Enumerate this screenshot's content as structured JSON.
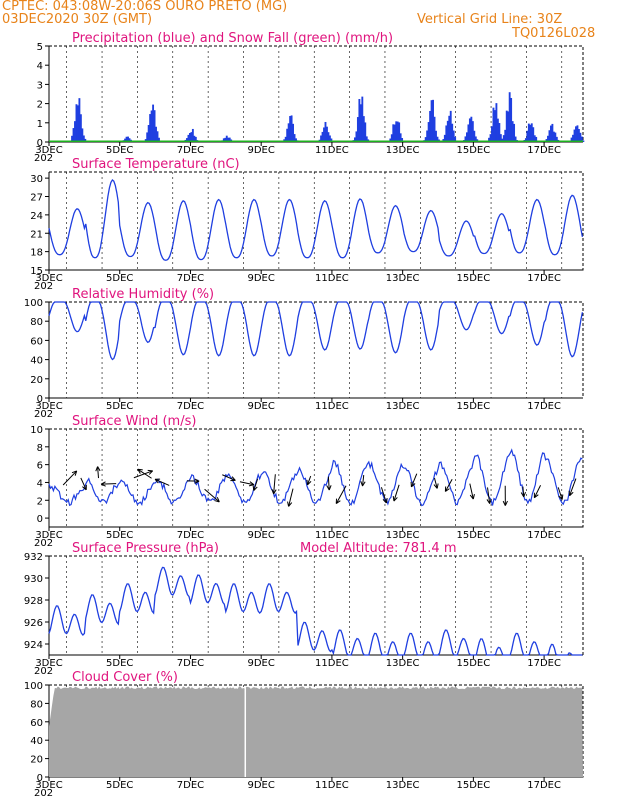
{
  "header": {
    "line1_left": "CPTEC:   043:08W-20:06S  OURO PRETO (MG)",
    "line2_left": "03DEC2020 30Z (GMT)",
    "line2_right": "Vertical Grid Line: 30Z",
    "line3_right": "TQ0126L028"
  },
  "colors": {
    "header": "#e8831a",
    "title": "#e0147e",
    "series": "#1f3fe0",
    "snow": "#1db21d",
    "cloud": "#a6a6a6"
  },
  "x_labels": [
    "3DEC",
    "5DEC",
    "7DEC",
    "9DEC",
    "11DEC",
    "13DEC",
    "15DEC",
    "17DEC"
  ],
  "x_sublabel": "202",
  "chart_data": [
    {
      "type": "bar",
      "title": "Precipitation (blue) and Snow Fall (green) (mm/h)",
      "ylim": [
        0,
        5
      ],
      "yticks": [
        "0",
        "1",
        "2",
        "3",
        "4",
        "5"
      ],
      "series": [
        {
          "name": "Precipitation",
          "events": [
            [
              3.8,
              2.8
            ],
            [
              5.2,
              0.3
            ],
            [
              5.9,
              2.4
            ],
            [
              7.0,
              0.8
            ],
            [
              8.0,
              0.4
            ],
            [
              9.8,
              1.5
            ],
            [
              10.8,
              1.2
            ],
            [
              11.8,
              2.7
            ],
            [
              12.8,
              1.7
            ],
            [
              13.8,
              2.5
            ],
            [
              14.3,
              1.8
            ],
            [
              14.9,
              1.8
            ],
            [
              15.6,
              2.3
            ],
            [
              16.0,
              2.8
            ],
            [
              16.6,
              1.3
            ],
            [
              17.2,
              1.0
            ],
            [
              17.9,
              1.2
            ]
          ]
        },
        {
          "name": "Snow Fall",
          "values": [
            0
          ]
        }
      ]
    },
    {
      "type": "line",
      "title": "Surface Temperature (nC)",
      "ylim": [
        15,
        31
      ],
      "yticks": [
        "15",
        "18",
        "21",
        "24",
        "27",
        "30"
      ],
      "series": [
        {
          "min": [
            17.5,
            17,
            17.2,
            16.6,
            16.7,
            17,
            17.3,
            17,
            17,
            17.8,
            18,
            17.3,
            17.7,
            17.8,
            17.5
          ],
          "max": [
            25,
            29.7,
            26,
            26.3,
            26.5,
            26.5,
            26.5,
            26.3,
            26.6,
            25.5,
            24.7,
            23,
            24.2,
            26.5,
            27.2
          ]
        }
      ]
    },
    {
      "type": "line",
      "title": "Relative Humidity (%)",
      "ylim": [
        0,
        100
      ],
      "yticks": [
        "0",
        "20",
        "40",
        "60",
        "80",
        "100"
      ],
      "series": [
        {
          "min": [
            66,
            37,
            55,
            42,
            41,
            41,
            41,
            47,
            48,
            44,
            47,
            68,
            64,
            52,
            40
          ]
        }
      ]
    },
    {
      "type": "line",
      "title": "Surface Wind (m/s)",
      "ylim": [
        -1,
        10
      ],
      "yticks": [
        "0",
        "2",
        "4",
        "6",
        "8",
        "10"
      ],
      "series": [
        {
          "daily": [
            3.5,
            4.2,
            4.0,
            4.3,
            4.5,
            5.0,
            5.2,
            5.5,
            6.2,
            6.0,
            5.5,
            6.2,
            7.0,
            7.5,
            6.5
          ]
        }
      ]
    },
    {
      "type": "line",
      "title": "Surface Pressure (hPa)",
      "annotation": "Model Altitude: 781.4  m",
      "ylim": [
        923,
        932
      ],
      "yticks": [
        "924",
        "926",
        "928",
        "930",
        "932"
      ],
      "series": [
        {
          "daily": [
            926,
            927,
            928,
            929.5,
            928.8,
            928,
            928,
            924.5,
            923.8,
            923.5,
            923.5,
            923.8,
            923,
            923.5,
            922.5
          ]
        }
      ]
    },
    {
      "type": "area",
      "title": "Cloud Cover (%)",
      "ylim": [
        0,
        100
      ],
      "yticks": [
        "0",
        "20",
        "40",
        "60",
        "80",
        "100"
      ],
      "series": [
        {
          "typical": 97
        }
      ]
    }
  ]
}
